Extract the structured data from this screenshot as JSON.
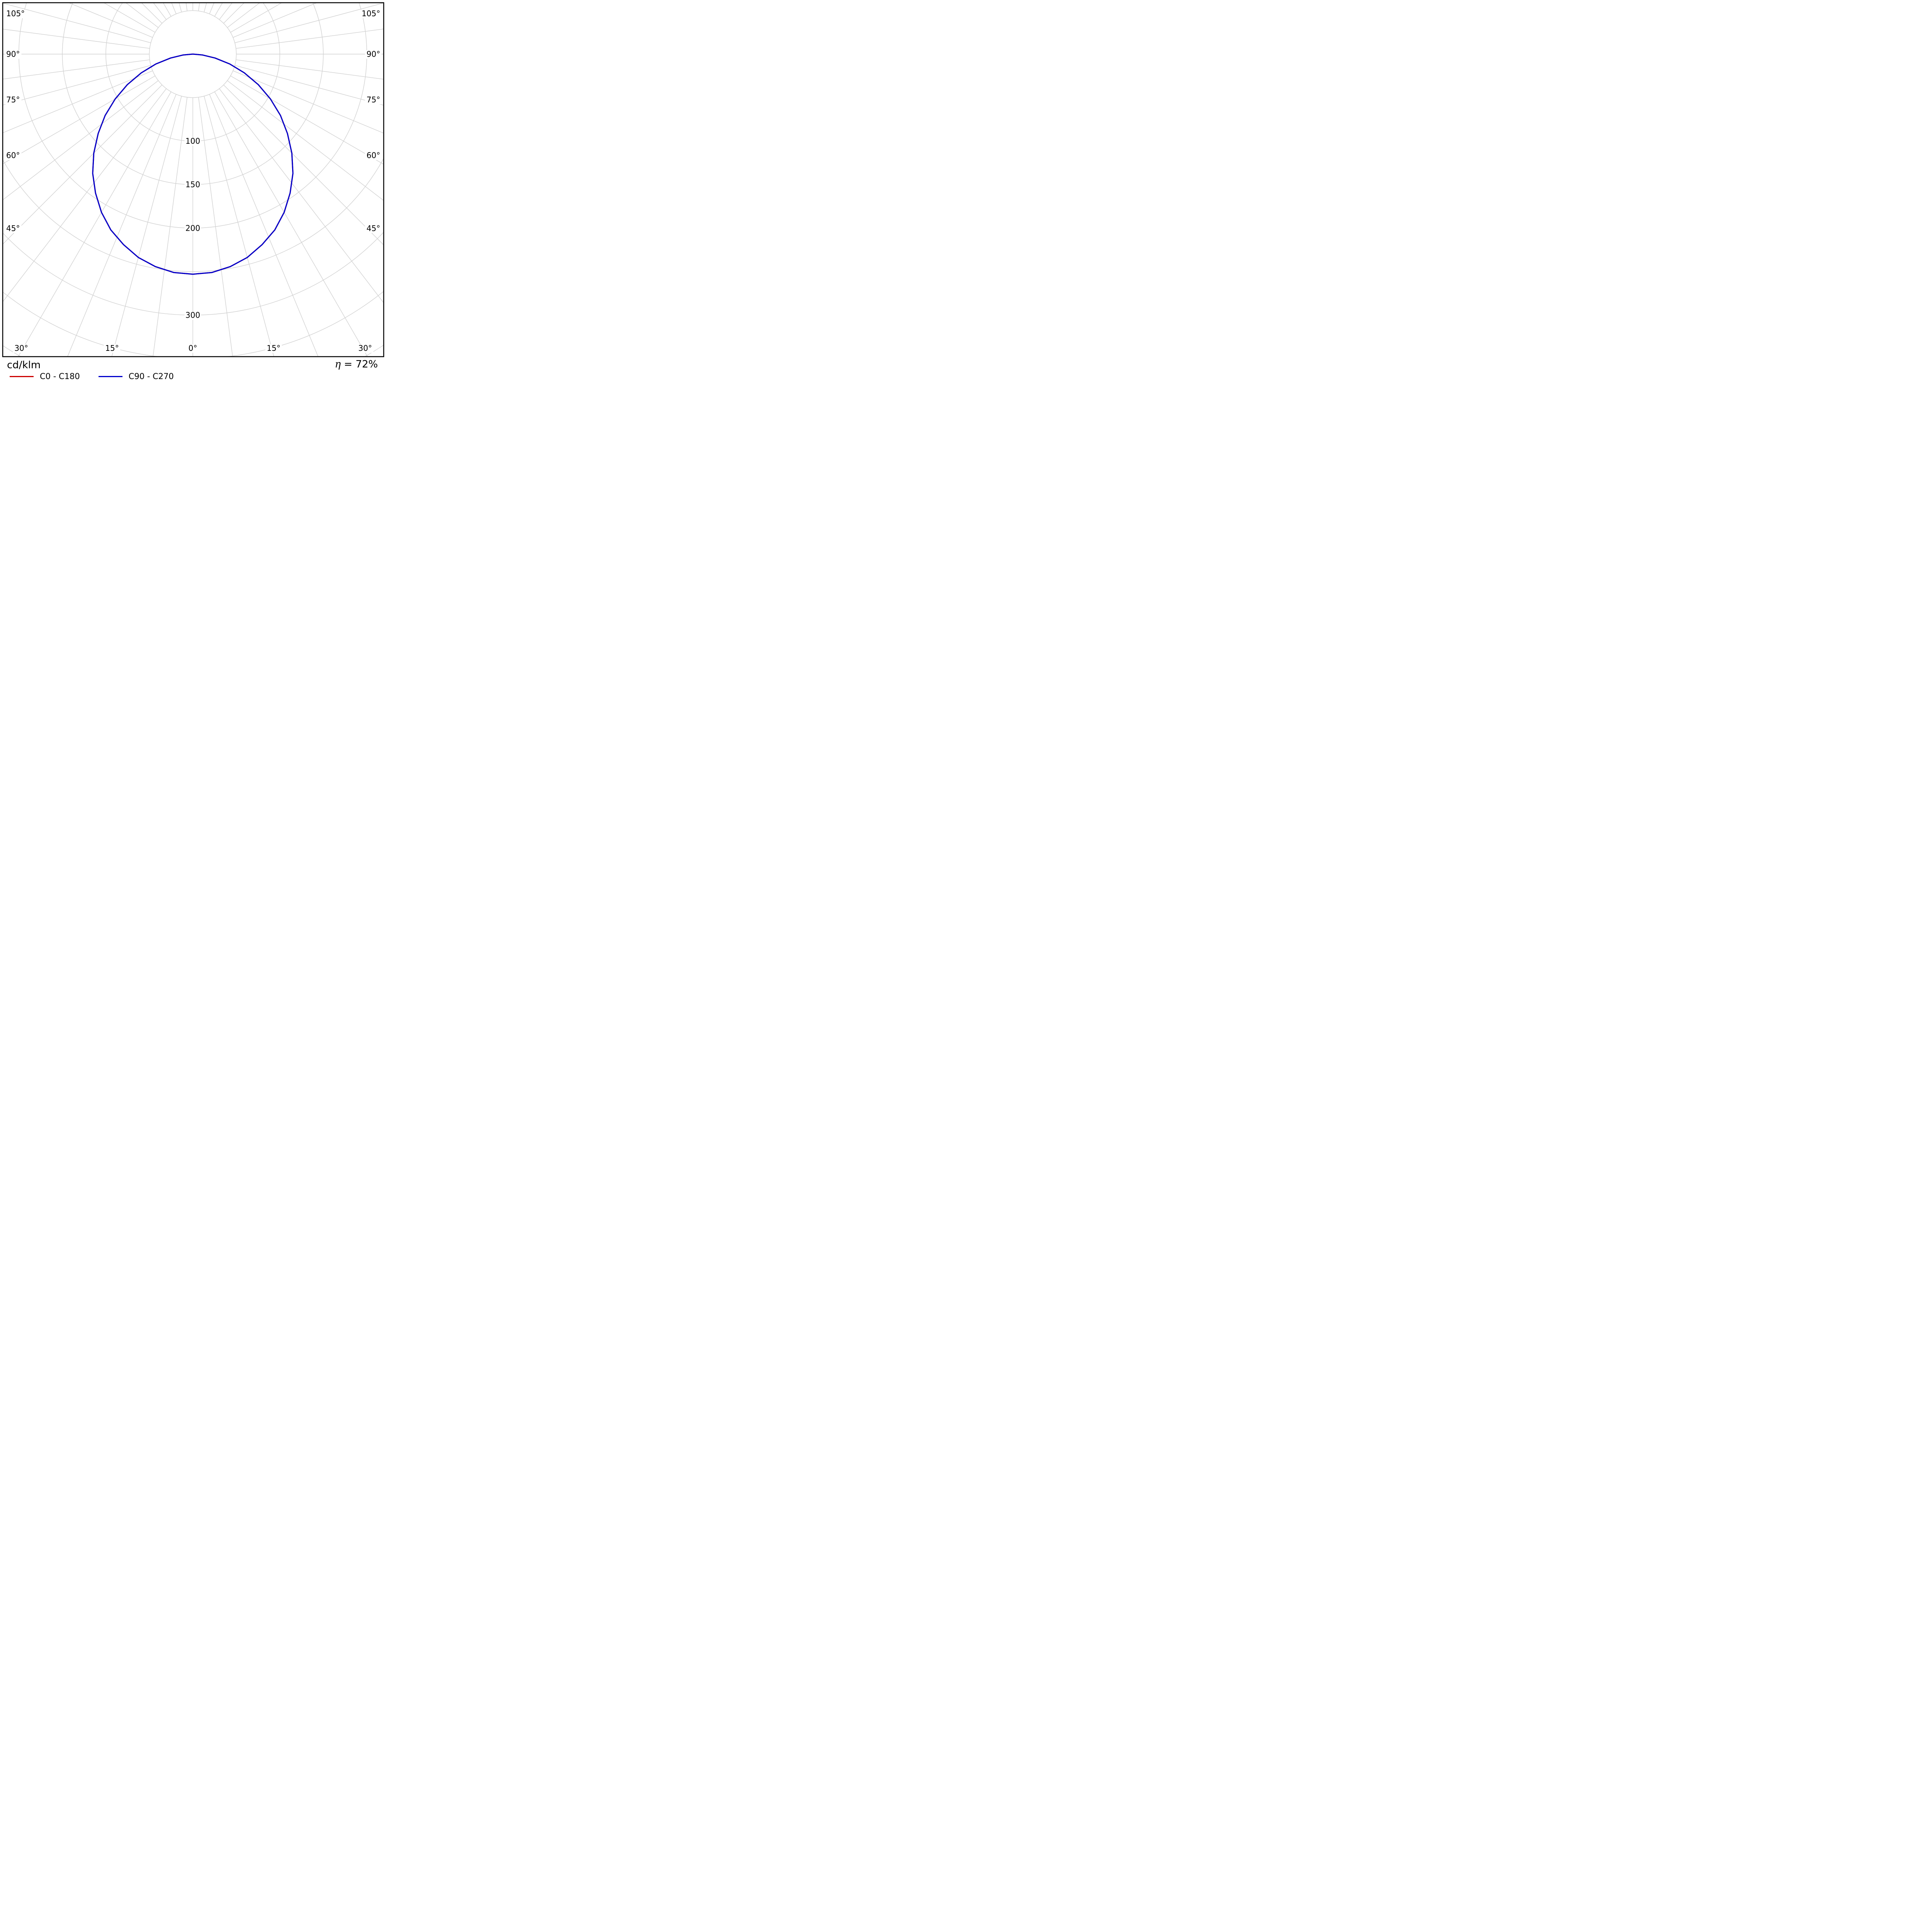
{
  "chart_data": {
    "type": "polar",
    "subtype": "luminous-intensity-distribution",
    "title": "",
    "units": "cd/klm",
    "efficiency": "η = 72%",
    "legend_position": "bottom-left",
    "grid": {
      "color": "#d2d2d2",
      "radial_values": [
        50,
        100,
        150,
        200,
        250,
        300,
        350,
        400
      ],
      "spoke_step_deg": 7.5,
      "spoke_max_deg": 180
    },
    "angle_tick_labels": [
      "0°",
      "15°",
      "30°",
      "45°",
      "60°",
      "75°",
      "90°",
      "105°"
    ],
    "radial_tick_labels": [
      "100",
      "150",
      "200",
      "300"
    ],
    "series": [
      {
        "name": "C0 - C180",
        "color": "#cc0000",
        "gamma_deg": [
          0,
          5,
          10,
          15,
          20,
          25,
          30,
          35,
          40,
          45,
          50,
          55,
          60,
          65,
          70,
          75,
          80,
          85,
          90
        ],
        "values_cd_per_klm": [
          253,
          252,
          248,
          242,
          233,
          223,
          210,
          195,
          179,
          161,
          142,
          123,
          103,
          83,
          63,
          44,
          26,
          11,
          0
        ]
      },
      {
        "name": "C90 - C270",
        "color": "#0000cc",
        "gamma_deg": [
          0,
          5,
          10,
          15,
          20,
          25,
          30,
          35,
          40,
          45,
          50,
          55,
          60,
          65,
          70,
          75,
          80,
          85,
          90
        ],
        "values_cd_per_klm": [
          253,
          252,
          248,
          242,
          233,
          223,
          210,
          195,
          179,
          161,
          142,
          123,
          103,
          83,
          63,
          44,
          26,
          11,
          0
        ]
      }
    ]
  },
  "footer": {
    "units_label": "cd/klm",
    "efficiency_label": "η = 72%"
  }
}
